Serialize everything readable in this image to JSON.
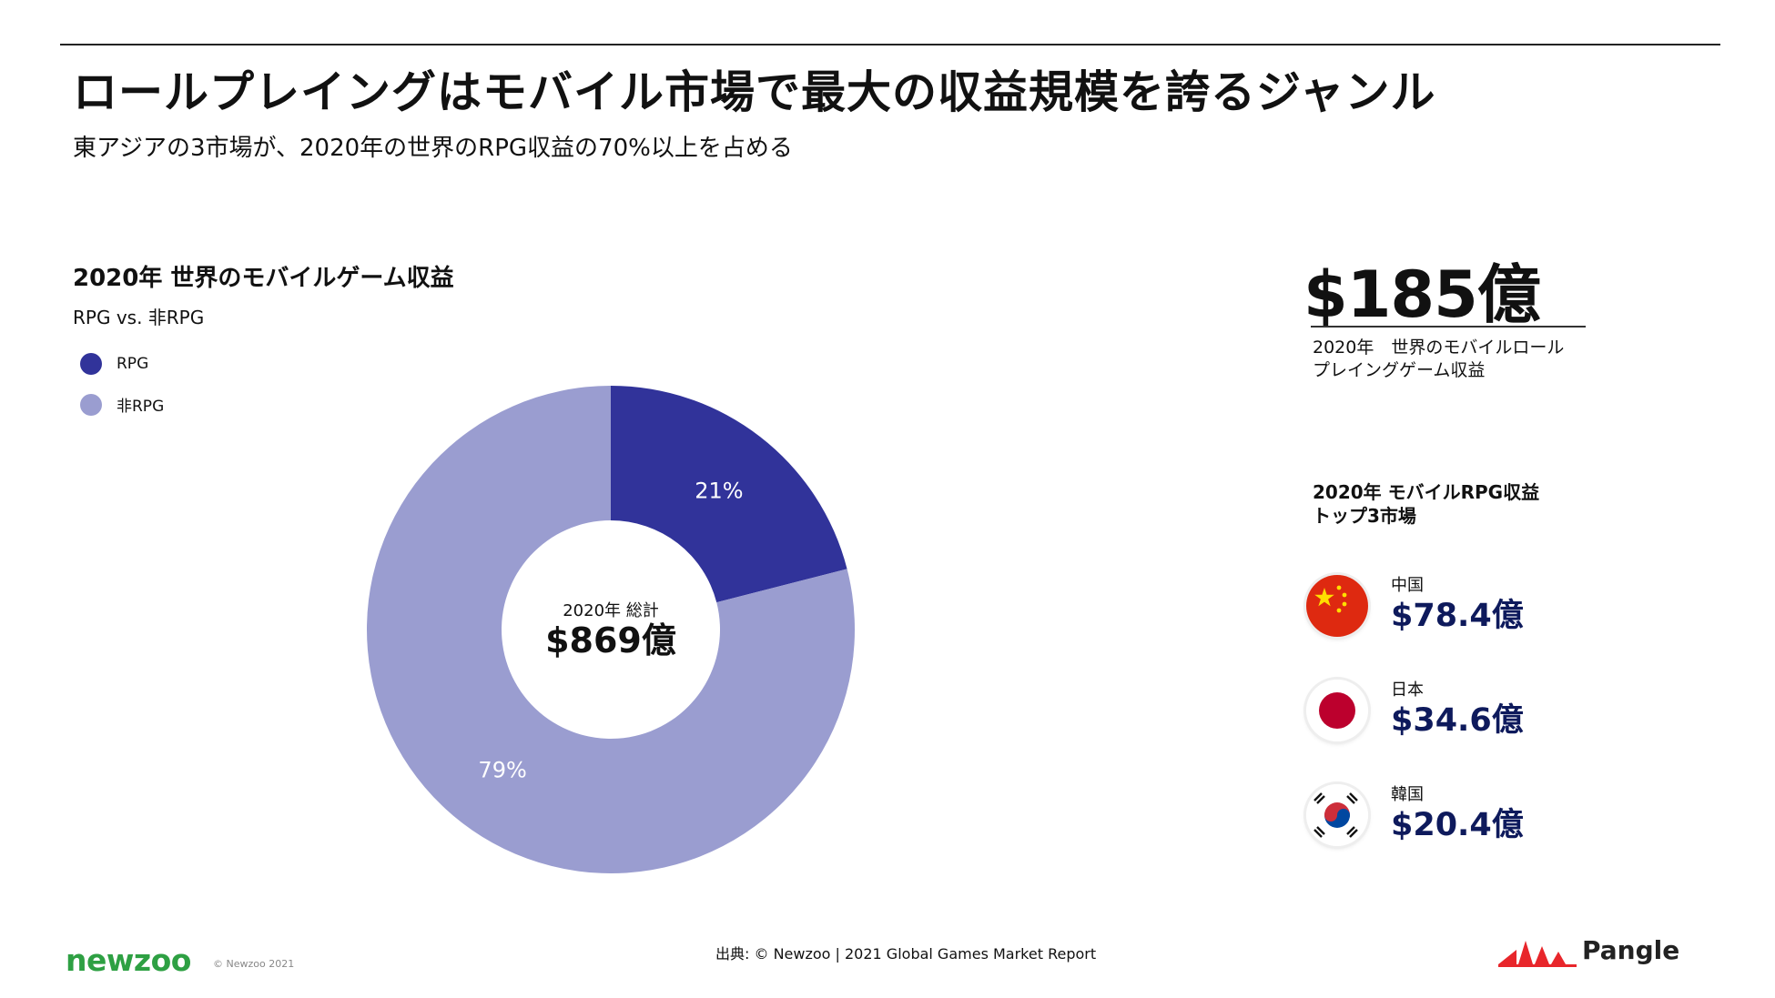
{
  "header": {
    "title": "ロールプレイングはモバイル市場で最大の収益規模を誇るジャンル",
    "subtitle": "東アジアの3市場が、2020年の世界のRPG収益の70%以上を占める"
  },
  "chart_data": {
    "type": "pie",
    "title": "2020年 世界のモバイルゲーム収益",
    "subtitle": "RPG vs. 非RPG",
    "categories": [
      "RPG",
      "非RPG"
    ],
    "values": [
      21,
      79
    ],
    "value_labels": [
      "21%",
      "79%"
    ],
    "unit": "%",
    "colors": [
      "#31339a",
      "#9a9dd0"
    ],
    "legend": "top-left",
    "center_label": "2020年 総計",
    "center_value": "$869億"
  },
  "stat": {
    "value": "$185億",
    "caption_line1": "2020年　世界のモバイルロール",
    "caption_line2": "プレイングゲーム収益"
  },
  "markets": {
    "title_line1": "2020年 モバイルRPG収益",
    "title_line2": "トップ3市場",
    "items": [
      {
        "name": "中国",
        "value": "$78.4億",
        "flag": "china-flag-icon"
      },
      {
        "name": "日本",
        "value": "$34.6億",
        "flag": "japan-flag-icon"
      },
      {
        "name": "韓国",
        "value": "$20.4億",
        "flag": "korea-flag-icon"
      }
    ]
  },
  "footer": {
    "source": "出典: © Newzoo | 2021 Global Games Market Report",
    "newzoo_logo": "newzoo",
    "newzoo_copyright": "© Newzoo 2021",
    "pangle_logo": "Pangle"
  }
}
